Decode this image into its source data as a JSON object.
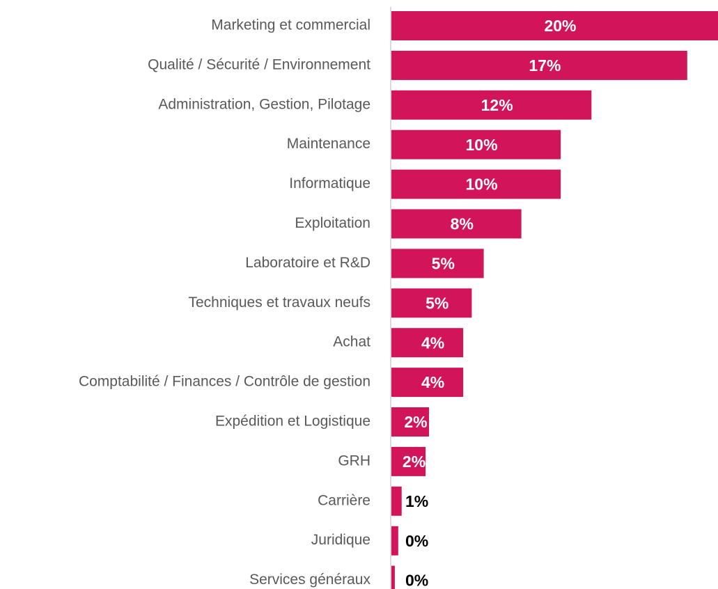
{
  "chart_data": {
    "type": "bar",
    "orientation": "horizontal",
    "categories": [
      "Marketing et commercial",
      "Qualité / Sécurité / Environnement",
      "Administration, Gestion, Pilotage",
      "Maintenance",
      "Informatique",
      "Exploitation",
      "Laboratoire et R&D",
      "Techniques et travaux neufs",
      "Achat",
      "Comptabilité / Finances / Contrôle de gestion",
      "Expédition et Logistique",
      "GRH",
      "Carrière",
      "Juridique",
      "Services généraux"
    ],
    "values": [
      20,
      17.3,
      11.7,
      9.9,
      9.9,
      7.6,
      5.4,
      4.7,
      4.2,
      4.2,
      2.2,
      2.0,
      0.6,
      0.4,
      0.2
    ],
    "value_labels": [
      "20%",
      "17%",
      "12%",
      "10%",
      "10%",
      "8%",
      "5%",
      "5%",
      "4%",
      "4%",
      "2%",
      "2%",
      "1%",
      "0%",
      "0%"
    ],
    "color": "#d2145a",
    "xlim": [
      0,
      19.1
    ]
  }
}
